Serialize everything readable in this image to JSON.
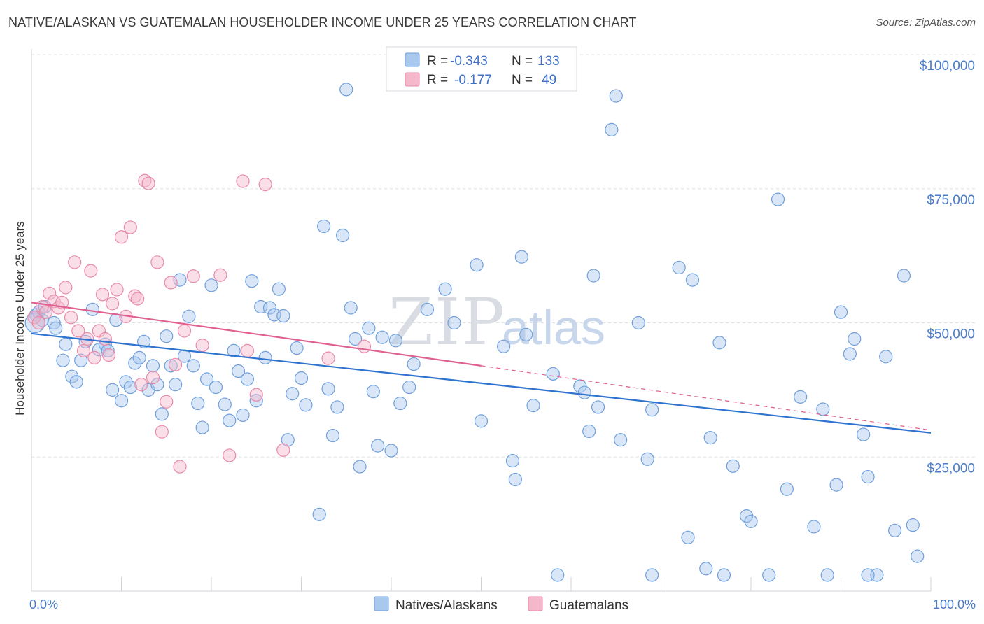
{
  "header": {
    "title": "NATIVE/ALASKAN VS GUATEMALAN HOUSEHOLDER INCOME UNDER 25 YEARS CORRELATION CHART",
    "source": "Source: ZipAtlas.com"
  },
  "watermark": {
    "zip": "ZIP",
    "atlas": "atlas"
  },
  "colors": {
    "blue_fill": "#a9c8ee",
    "blue_stroke": "#6f9fdc",
    "blue_line": "#2f73d0",
    "pink_fill": "#f5b8cb",
    "pink_stroke": "#ea8aa8",
    "pink_line": "#e06090",
    "grid": "#dde1e6",
    "axis_text": "#4a7cc9"
  },
  "legend": {
    "rows": [
      {
        "r_label": "R =",
        "r_value": "-0.343",
        "n_label": "N =",
        "n_value": "133"
      },
      {
        "r_label": "R =",
        "r_value": "-0.177",
        "n_label": "N =",
        "n_value": "49"
      }
    ]
  },
  "bottom_legend": [
    "Natives/Alaskans",
    "Guatemalans"
  ],
  "chart_data": {
    "type": "scatter",
    "title": "NATIVE/ALASKAN VS GUATEMALAN HOUSEHOLDER INCOME UNDER 25 YEARS CORRELATION CHART",
    "ylabel": "Householder Income Under 25 years",
    "xlabel": "",
    "x_tick_labels": [
      "0.0%",
      "100.0%"
    ],
    "y_tick_labels": [
      "$25,000",
      "$50,000",
      "$75,000",
      "$100,000"
    ],
    "y_ticks": [
      25000,
      50000,
      75000,
      100000
    ],
    "xlim": [
      0,
      100
    ],
    "ylim": [
      0,
      100000
    ],
    "grid": true,
    "legend_position": "top-center",
    "series": [
      {
        "name": "Natives/Alaskans",
        "r": -0.343,
        "n": 133,
        "trend": {
          "x": [
            0,
            100
          ],
          "y": [
            48000,
            29500
          ]
        },
        "points": [
          [
            0.5,
            51500
          ],
          [
            0.8,
            52000
          ],
          [
            1.2,
            50500
          ],
          [
            1.5,
            53000
          ],
          [
            2.5,
            50000
          ],
          [
            2.7,
            49000
          ],
          [
            3.5,
            43000
          ],
          [
            3.8,
            46000
          ],
          [
            4.5,
            40000
          ],
          [
            5.0,
            39000
          ],
          [
            5.5,
            43000
          ],
          [
            6.0,
            46500
          ],
          [
            6.8,
            52500
          ],
          [
            7.5,
            45000
          ],
          [
            8.2,
            46000
          ],
          [
            8.5,
            44800
          ],
          [
            9.0,
            37500
          ],
          [
            9.4,
            50500
          ],
          [
            10.0,
            35500
          ],
          [
            10.5,
            39000
          ],
          [
            11.0,
            38000
          ],
          [
            11.5,
            42500
          ],
          [
            12.0,
            43500
          ],
          [
            12.5,
            46500
          ],
          [
            13.0,
            37500
          ],
          [
            13.5,
            42000
          ],
          [
            14.0,
            38500
          ],
          [
            14.5,
            33000
          ],
          [
            15.0,
            47500
          ],
          [
            15.5,
            42000
          ],
          [
            16.0,
            38500
          ],
          [
            16.5,
            58000
          ],
          [
            17.0,
            43800
          ],
          [
            17.5,
            51200
          ],
          [
            18.0,
            42000
          ],
          [
            18.5,
            35000
          ],
          [
            19.0,
            30500
          ],
          [
            19.5,
            39500
          ],
          [
            20.0,
            57000
          ],
          [
            20.5,
            38000
          ],
          [
            21.5,
            34800
          ],
          [
            22.0,
            31800
          ],
          [
            22.5,
            44800
          ],
          [
            23.0,
            41000
          ],
          [
            23.5,
            32800
          ],
          [
            24.0,
            39500
          ],
          [
            24.5,
            57800
          ],
          [
            25.0,
            35500
          ],
          [
            25.5,
            53000
          ],
          [
            26.0,
            43500
          ],
          [
            26.5,
            52800
          ],
          [
            27.0,
            51500
          ],
          [
            27.5,
            56300
          ],
          [
            28.0,
            51300
          ],
          [
            28.5,
            28200
          ],
          [
            29.0,
            36800
          ],
          [
            29.5,
            45300
          ],
          [
            30.0,
            39700
          ],
          [
            30.5,
            34700
          ],
          [
            32.0,
            14300
          ],
          [
            32.5,
            68000
          ],
          [
            33.0,
            37700
          ],
          [
            33.5,
            29000
          ],
          [
            34.0,
            34300
          ],
          [
            34.6,
            66300
          ],
          [
            35.0,
            93500
          ],
          [
            35.5,
            52800
          ],
          [
            36.0,
            47000
          ],
          [
            36.5,
            23200
          ],
          [
            37.5,
            49000
          ],
          [
            38.0,
            37200
          ],
          [
            38.5,
            27100
          ],
          [
            39.0,
            47300
          ],
          [
            40.0,
            26200
          ],
          [
            40.5,
            46700
          ],
          [
            41.0,
            35000
          ],
          [
            42.0,
            38000
          ],
          [
            42.5,
            42300
          ],
          [
            44.0,
            52500
          ],
          [
            46.0,
            56300
          ],
          [
            47.0,
            50000
          ],
          [
            49.5,
            60800
          ],
          [
            50.0,
            31700
          ],
          [
            52.5,
            45600
          ],
          [
            53.5,
            24300
          ],
          [
            53.8,
            20800
          ],
          [
            54.5,
            62300
          ],
          [
            55.0,
            47800
          ],
          [
            55.8,
            34600
          ],
          [
            58.0,
            40500
          ],
          [
            61.0,
            38200
          ],
          [
            61.5,
            37000
          ],
          [
            62.0,
            29800
          ],
          [
            62.5,
            58800
          ],
          [
            63.0,
            34300
          ],
          [
            64.5,
            86000
          ],
          [
            65.0,
            92300
          ],
          [
            65.5,
            28200
          ],
          [
            67.5,
            50000
          ],
          [
            68.5,
            24600
          ],
          [
            69.0,
            33800
          ],
          [
            72.0,
            60300
          ],
          [
            73.0,
            10000
          ],
          [
            73.5,
            58000
          ],
          [
            75.0,
            4200
          ],
          [
            75.5,
            28600
          ],
          [
            76.5,
            46300
          ],
          [
            78.0,
            23300
          ],
          [
            79.5,
            14000
          ],
          [
            80.0,
            13000
          ],
          [
            83.0,
            73000
          ],
          [
            84.0,
            19000
          ],
          [
            85.5,
            36200
          ],
          [
            87.0,
            12000
          ],
          [
            88.0,
            33900
          ],
          [
            89.5,
            19800
          ],
          [
            90.0,
            52000
          ],
          [
            91.0,
            44200
          ],
          [
            91.5,
            47000
          ],
          [
            92.5,
            29200
          ],
          [
            93.0,
            21300
          ],
          [
            94.0,
            3000
          ],
          [
            95.0,
            43700
          ],
          [
            96.0,
            11300
          ],
          [
            97.0,
            58800
          ],
          [
            98.0,
            12300
          ],
          [
            98.5,
            6500
          ],
          [
            82.0,
            3000
          ],
          [
            88.5,
            3000
          ],
          [
            93.0,
            3000
          ],
          [
            58.5,
            3000
          ],
          [
            69.0,
            3000
          ],
          [
            77.0,
            3000
          ]
        ]
      },
      {
        "name": "Guatemalans",
        "r": -0.177,
        "n": 49,
        "trend": {
          "x": [
            0,
            50
          ],
          "y": [
            53800,
            42000
          ]
        },
        "trend_dashed": {
          "x": [
            50,
            100
          ],
          "y": [
            42000,
            30000
          ]
        },
        "points": [
          [
            0.3,
            51000
          ],
          [
            0.8,
            50000
          ],
          [
            1.2,
            53000
          ],
          [
            1.6,
            52000
          ],
          [
            2.0,
            55500
          ],
          [
            2.5,
            54000
          ],
          [
            3.0,
            52800
          ],
          [
            3.4,
            53800
          ],
          [
            3.8,
            56600
          ],
          [
            4.4,
            51000
          ],
          [
            4.8,
            61300
          ],
          [
            5.2,
            48500
          ],
          [
            5.8,
            44800
          ],
          [
            6.2,
            47000
          ],
          [
            6.6,
            59700
          ],
          [
            7.0,
            43500
          ],
          [
            7.5,
            48500
          ],
          [
            7.9,
            55300
          ],
          [
            8.2,
            47000
          ],
          [
            8.6,
            44000
          ],
          [
            9.0,
            53600
          ],
          [
            9.5,
            56200
          ],
          [
            10.0,
            66000
          ],
          [
            10.5,
            51200
          ],
          [
            11.0,
            67800
          ],
          [
            11.5,
            55000
          ],
          [
            11.8,
            54500
          ],
          [
            12.2,
            38500
          ],
          [
            12.6,
            76500
          ],
          [
            13.0,
            76000
          ],
          [
            13.5,
            39800
          ],
          [
            14.0,
            61300
          ],
          [
            14.5,
            29700
          ],
          [
            15.0,
            35300
          ],
          [
            15.5,
            57500
          ],
          [
            16.0,
            42200
          ],
          [
            16.5,
            23200
          ],
          [
            17.0,
            48500
          ],
          [
            18.0,
            58700
          ],
          [
            19.0,
            45800
          ],
          [
            21.0,
            58900
          ],
          [
            22.0,
            25300
          ],
          [
            23.5,
            76400
          ],
          [
            24.0,
            44800
          ],
          [
            25.0,
            36600
          ],
          [
            26.0,
            75800
          ],
          [
            28.0,
            26300
          ],
          [
            33.0,
            43400
          ],
          [
            37.0,
            45600
          ]
        ]
      }
    ]
  }
}
